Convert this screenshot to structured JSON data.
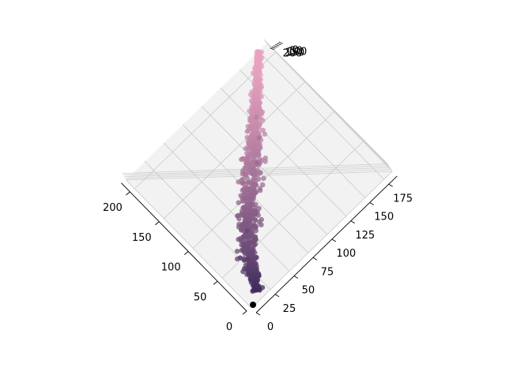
{
  "chart_data": {
    "type": "scatter",
    "title": "",
    "xlabel": "",
    "ylabel": "",
    "zlabel": "",
    "projection": "3d",
    "grid": true,
    "x_axis": {
      "ticks": [
        0,
        50,
        100,
        150,
        200
      ],
      "labels": [
        "0",
        "50",
        "100",
        "150",
        "200"
      ]
    },
    "y_axis": {
      "ticks": [
        0,
        25,
        50,
        75,
        100,
        125,
        150,
        175
      ],
      "labels": [
        "0",
        "25",
        "50",
        "75",
        "100",
        "125",
        "150",
        "175"
      ]
    },
    "z_axis": {
      "labels": [
        "200",
        "150",
        "100",
        "50",
        "0"
      ]
    },
    "colormap_start": "#3d2a5c",
    "colormap_end": "#e8a3c0",
    "cloud_axis": [
      {
        "x": 10,
        "y": 15
      },
      {
        "x": 50,
        "y": 35
      },
      {
        "x": 100,
        "y": 75
      },
      {
        "x": 150,
        "y": 120
      },
      {
        "x": 215,
        "y": 175
      }
    ],
    "outlier": {
      "x": 0,
      "y": 0,
      "color": "#000000"
    },
    "tail_points": [
      {
        "x": 45,
        "y": 30
      },
      {
        "x": 70,
        "y": 48
      },
      {
        "x": 120,
        "y": 100
      },
      {
        "x": 140,
        "y": 118
      },
      {
        "x": 160,
        "y": 130
      }
    ]
  }
}
